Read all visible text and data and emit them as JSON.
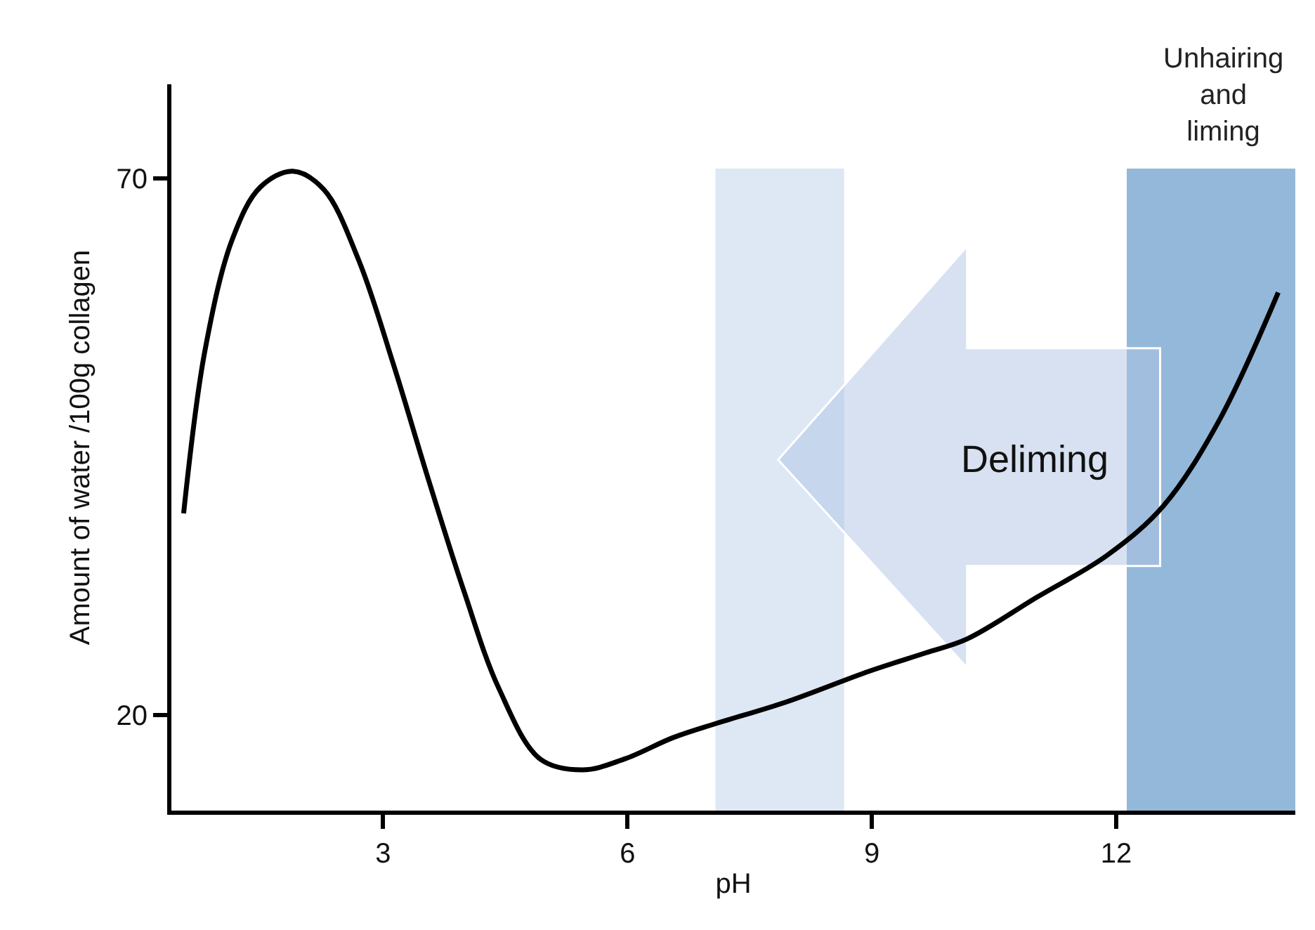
{
  "chart_data": {
    "type": "line",
    "xlabel": "pH",
    "ylabel": "Amount of water /100g collagen",
    "x": [
      0.55,
      0.81,
      1.15,
      1.49,
      1.89,
      2.27,
      2.7,
      3.13,
      3.55,
      3.99,
      4.42,
      4.93,
      5.45,
      5.96,
      6.56,
      7.08,
      7.94,
      8.97,
      9.66,
      10.17,
      11.03,
      11.89,
      12.58,
      13.26,
      13.99
    ],
    "series": [
      {
        "color": "#000000",
        "values": [
          38.8,
          53.9,
          64.4,
          69.2,
          70.7,
          69.0,
          62.4,
          52.6,
          42.1,
          31.6,
          22.5,
          15.9,
          14.9,
          15.9,
          17.9,
          19.2,
          21.2,
          24.1,
          25.8,
          27.1,
          31.0,
          34.9,
          39.5,
          47.4,
          59.4
        ]
      }
    ],
    "xlim": [
      0.4,
      14.2
    ],
    "ylim": [
      11.1,
      78.8
    ],
    "xticks": [
      3,
      6,
      9,
      12
    ],
    "yticks": [
      20,
      70
    ],
    "bands": [
      {
        "axis": "x",
        "from": 7.08,
        "to": 8.66,
        "color": "#dde8f4"
      },
      {
        "axis": "x",
        "from": 12.13,
        "to": 14.2,
        "color": "#94b8da",
        "label": "Unhairing\nand\nliming"
      }
    ],
    "annotations": [
      "Deliming"
    ],
    "grid": false,
    "marker": "none",
    "line_style": "solid"
  }
}
